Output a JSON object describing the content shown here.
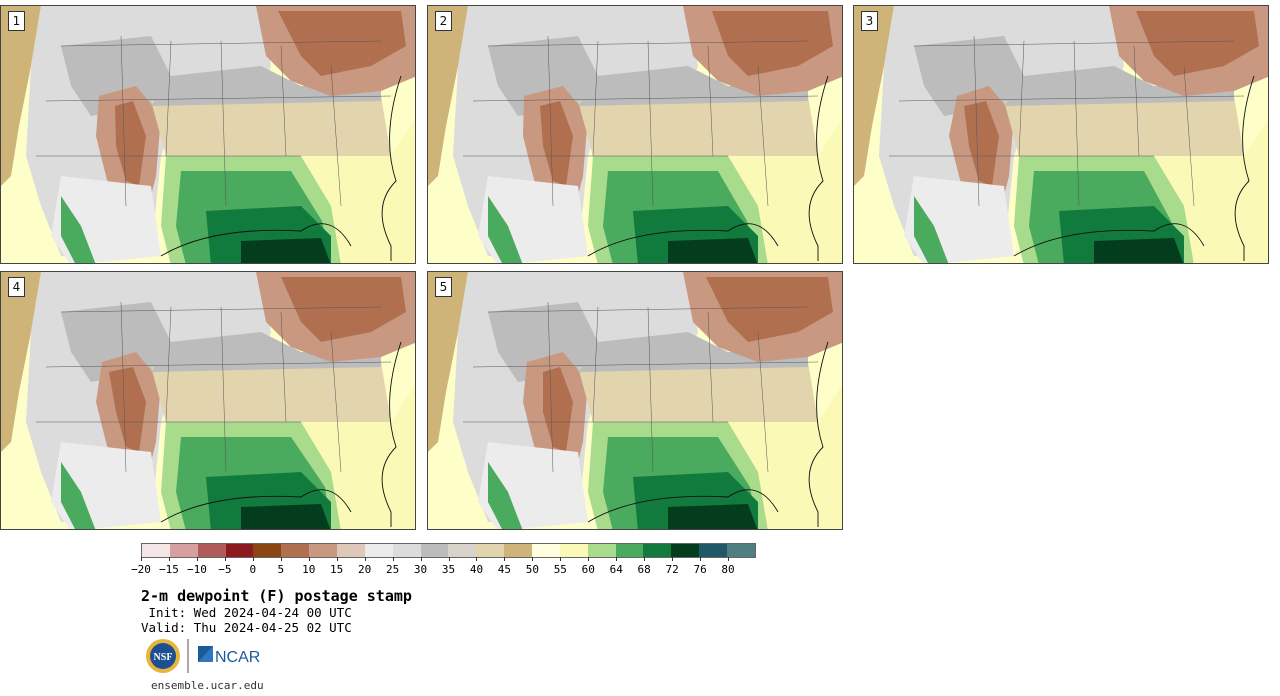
{
  "panels": [
    {
      "number": "1"
    },
    {
      "number": "2"
    },
    {
      "number": "3"
    },
    {
      "number": "4"
    },
    {
      "number": "5"
    }
  ],
  "colorbar": {
    "colors": [
      "#f4e6e6",
      "#d6a0a0",
      "#b05a5a",
      "#8c1a1e",
      "#8b4513",
      "#b07050",
      "#c89880",
      "#e0c8b8",
      "#ececec",
      "#dcdcdc",
      "#bcbcbc",
      "#d8d4cc",
      "#e2d4ad",
      "#cfb47a",
      "#ffffe0",
      "#fbf9b6",
      "#a8db8c",
      "#4aaa5e",
      "#117a3d",
      "#033d1e",
      "#1f5866",
      "#4f7f80"
    ],
    "ticks": [
      "−20",
      "−15",
      "−10",
      "−5",
      "0",
      "5",
      "10",
      "15",
      "20",
      "25",
      "30",
      "35",
      "40",
      "45",
      "50",
      "55",
      "60",
      "64",
      "68",
      "72",
      "76",
      "80"
    ]
  },
  "title": "2-m dewpoint (F) postage stamp",
  "init": " Init: Wed 2024-04-24 00 UTC",
  "valid": "Valid: Thu 2024-04-25 02 UTC",
  "logos": {
    "nsf": "NSF",
    "ncar": "NCAR"
  },
  "footer_url": "ensemble.ucar.edu"
}
